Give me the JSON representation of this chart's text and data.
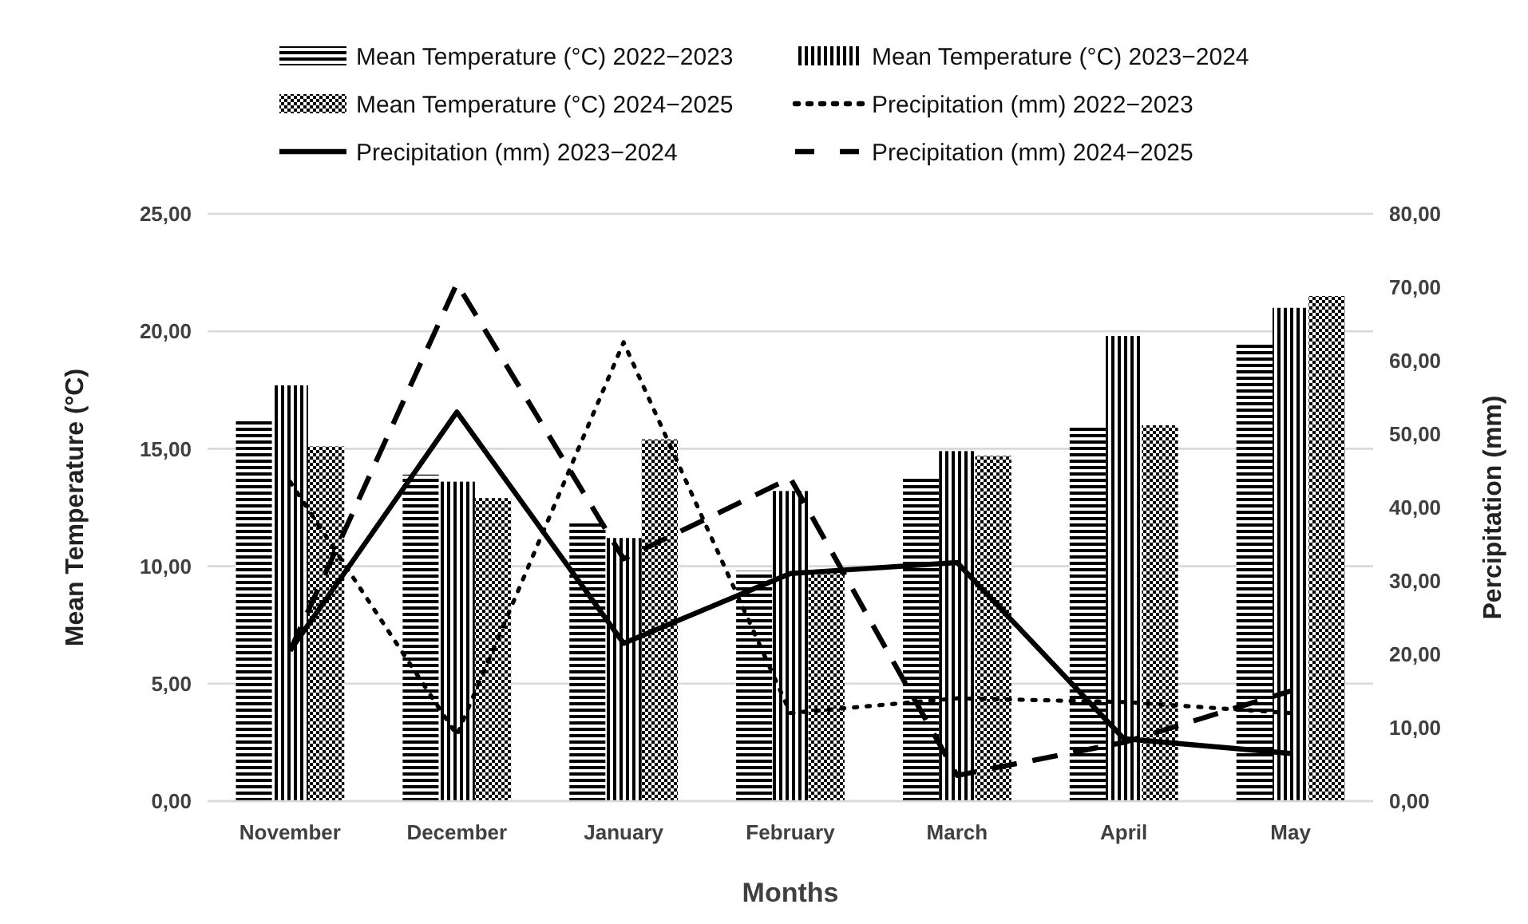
{
  "chart_data": {
    "type": "bar",
    "xlabel": "Months",
    "ylabel": "Mean Temperature (°C)",
    "y2label": "Percipitation (mm)",
    "categories": [
      "November",
      "December",
      "January",
      "February",
      "March",
      "April",
      "May"
    ],
    "series": [
      {
        "name": "Mean Temperature (°C) 2022−2023",
        "color": "#000000",
        "values": [
          16.3,
          13.9,
          11.9,
          9.8,
          13.8,
          15.9,
          19.5
        ]
      },
      {
        "name": "Mean Temperature (°C) 2023−2024",
        "color": "#000000",
        "values": [
          17.7,
          13.6,
          11.2,
          13.2,
          14.9,
          19.8,
          21.0
        ]
      },
      {
        "name": "Mean Temperature (°C) 2024−2025",
        "color": "#000000",
        "values": [
          15.1,
          12.9,
          15.4,
          9.8,
          14.7,
          16.0,
          21.5
        ]
      },
      {
        "name": "Precipitation (mm) 2022−2023",
        "type": "line",
        "axis": "y2",
        "line_style": "dotted",
        "color": "#000000",
        "values": [
          43.5,
          9,
          62.5,
          12,
          14,
          13.5,
          12
        ]
      },
      {
        "name": "Precipitation (mm) 2023−2024",
        "type": "line",
        "axis": "y2",
        "line_style": "solid",
        "color": "#000000",
        "values": [
          20.5,
          53,
          21.5,
          31,
          32.5,
          8.5,
          6.5
        ]
      },
      {
        "name": "Precipitation (mm) 2024−2025",
        "type": "line",
        "axis": "y2",
        "line_style": "dashed",
        "color": "#000000",
        "values": [
          20.5,
          70.5,
          33,
          44,
          3.5,
          8,
          15
        ]
      }
    ],
    "ylim": [
      0,
      25
    ],
    "yticks": [
      {
        "value": 0,
        "label": "0,00"
      },
      {
        "value": 5,
        "label": "5,00"
      },
      {
        "value": 10,
        "label": "10,00"
      },
      {
        "value": 15,
        "label": "15,00"
      },
      {
        "value": 20,
        "label": "20,00"
      },
      {
        "value": 25,
        "label": "25,00"
      }
    ],
    "y2lim": [
      0,
      80
    ],
    "y2ticks": [
      {
        "value": 0,
        "label": "0,00"
      },
      {
        "value": 10,
        "label": "10,00"
      },
      {
        "value": 20,
        "label": "20,00"
      },
      {
        "value": 30,
        "label": "30,00"
      },
      {
        "value": 40,
        "label": "40,00"
      },
      {
        "value": 50,
        "label": "50,00"
      },
      {
        "value": 60,
        "label": "60,00"
      },
      {
        "value": 70,
        "label": "70,00"
      },
      {
        "value": 80,
        "label": "80,00"
      }
    ],
    "grid": "y",
    "legend": "top"
  }
}
